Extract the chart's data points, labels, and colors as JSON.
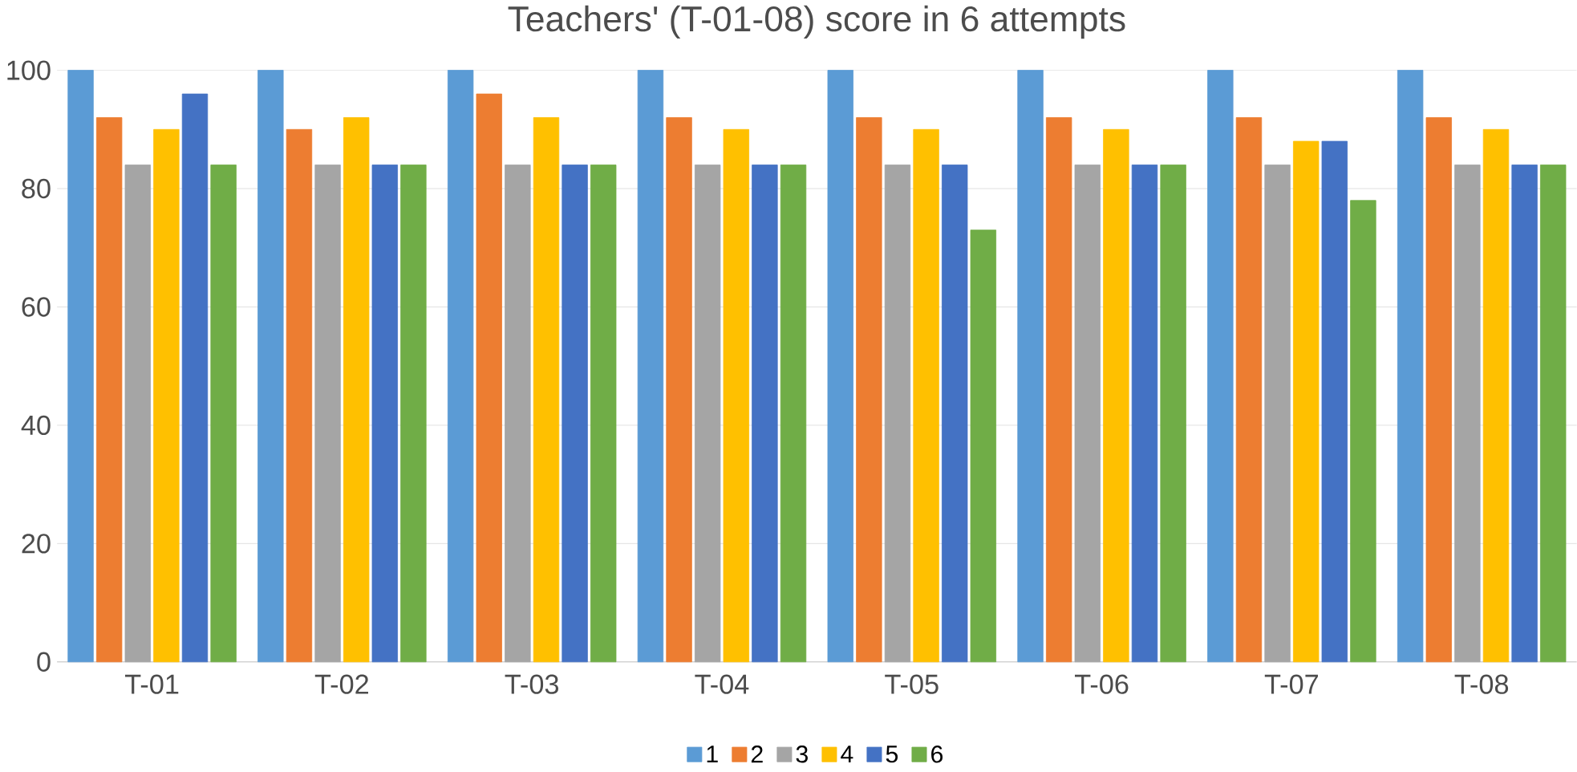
{
  "chart_data": {
    "type": "bar",
    "title": "Teachers' (T-01-08) score in 6 attempts",
    "categories": [
      "T-01",
      "T-02",
      "T-03",
      "T-04",
      "T-05",
      "T-06",
      "T-07",
      "T-08"
    ],
    "series": [
      {
        "name": "1",
        "color": "#5b9bd5",
        "values": [
          100,
          100,
          100,
          100,
          100,
          100,
          100,
          100
        ]
      },
      {
        "name": "2",
        "color": "#ed7d31",
        "values": [
          92,
          90,
          96,
          92,
          92,
          92,
          92,
          92
        ]
      },
      {
        "name": "3",
        "color": "#a5a5a5",
        "values": [
          84,
          84,
          84,
          84,
          84,
          84,
          84,
          84
        ]
      },
      {
        "name": "4",
        "color": "#ffc000",
        "values": [
          90,
          92,
          92,
          90,
          90,
          90,
          88,
          90
        ]
      },
      {
        "name": "5",
        "color": "#4472c4",
        "values": [
          96,
          84,
          84,
          84,
          84,
          84,
          88,
          84
        ]
      },
      {
        "name": "6",
        "color": "#70ad47",
        "values": [
          84,
          84,
          84,
          84,
          73,
          84,
          78,
          84
        ]
      }
    ],
    "ylim": [
      0,
      100
    ],
    "yticks": [
      0,
      20,
      40,
      60,
      80,
      100
    ],
    "grid": "y",
    "legend": "bottom"
  }
}
